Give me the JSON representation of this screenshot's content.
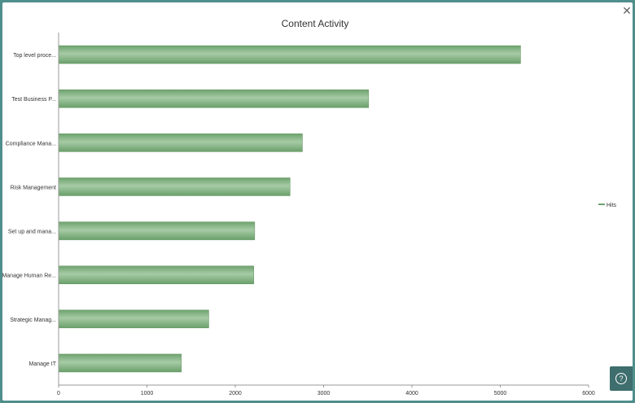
{
  "window": {
    "close_label": "✕"
  },
  "help": {
    "icon_glyph": "?"
  },
  "chart_data": {
    "type": "bar",
    "orientation": "horizontal",
    "title": "Content Activity",
    "categories": [
      "Top level proce...",
      "Test Business P...",
      "Compliance Mana...",
      "Risk Management",
      "Set up and mana...",
      "Manage Human Re...",
      "Strategic Manag...",
      "Manage IT"
    ],
    "series": [
      {
        "name": "Hits",
        "values": [
          5230,
          3510,
          2760,
          2620,
          2220,
          2210,
          1700,
          1390
        ],
        "color": "#7fb07f"
      }
    ],
    "xticks": [
      "0",
      "1000",
      "2000",
      "3000",
      "4000",
      "5000",
      "6000"
    ],
    "xlim": [
      0,
      6000
    ],
    "grid": false,
    "legend_position": "right"
  }
}
